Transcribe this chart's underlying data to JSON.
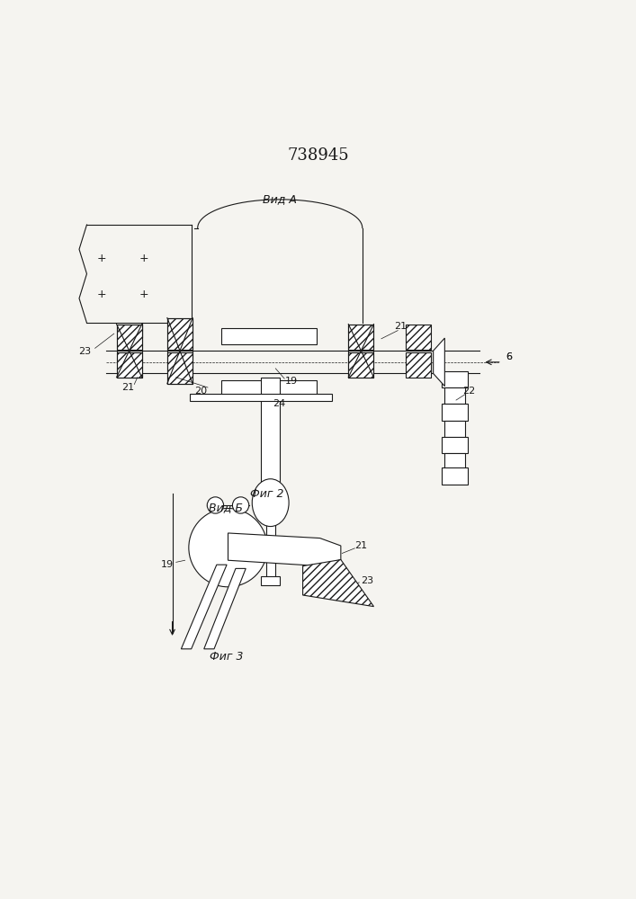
{
  "title": "738945",
  "bg_color": "#f5f4f0",
  "line_color": "#1a1a1a",
  "fig2_label": "Фиг 2",
  "fig3_label": "Фиг 3",
  "vid_a_label": "Вид A",
  "vid_b_label": "Вид Б",
  "label_6": "6",
  "label_19": "19",
  "label_20": "20",
  "label_21": "21",
  "label_22": "22",
  "label_23": "23",
  "label_24": "24"
}
